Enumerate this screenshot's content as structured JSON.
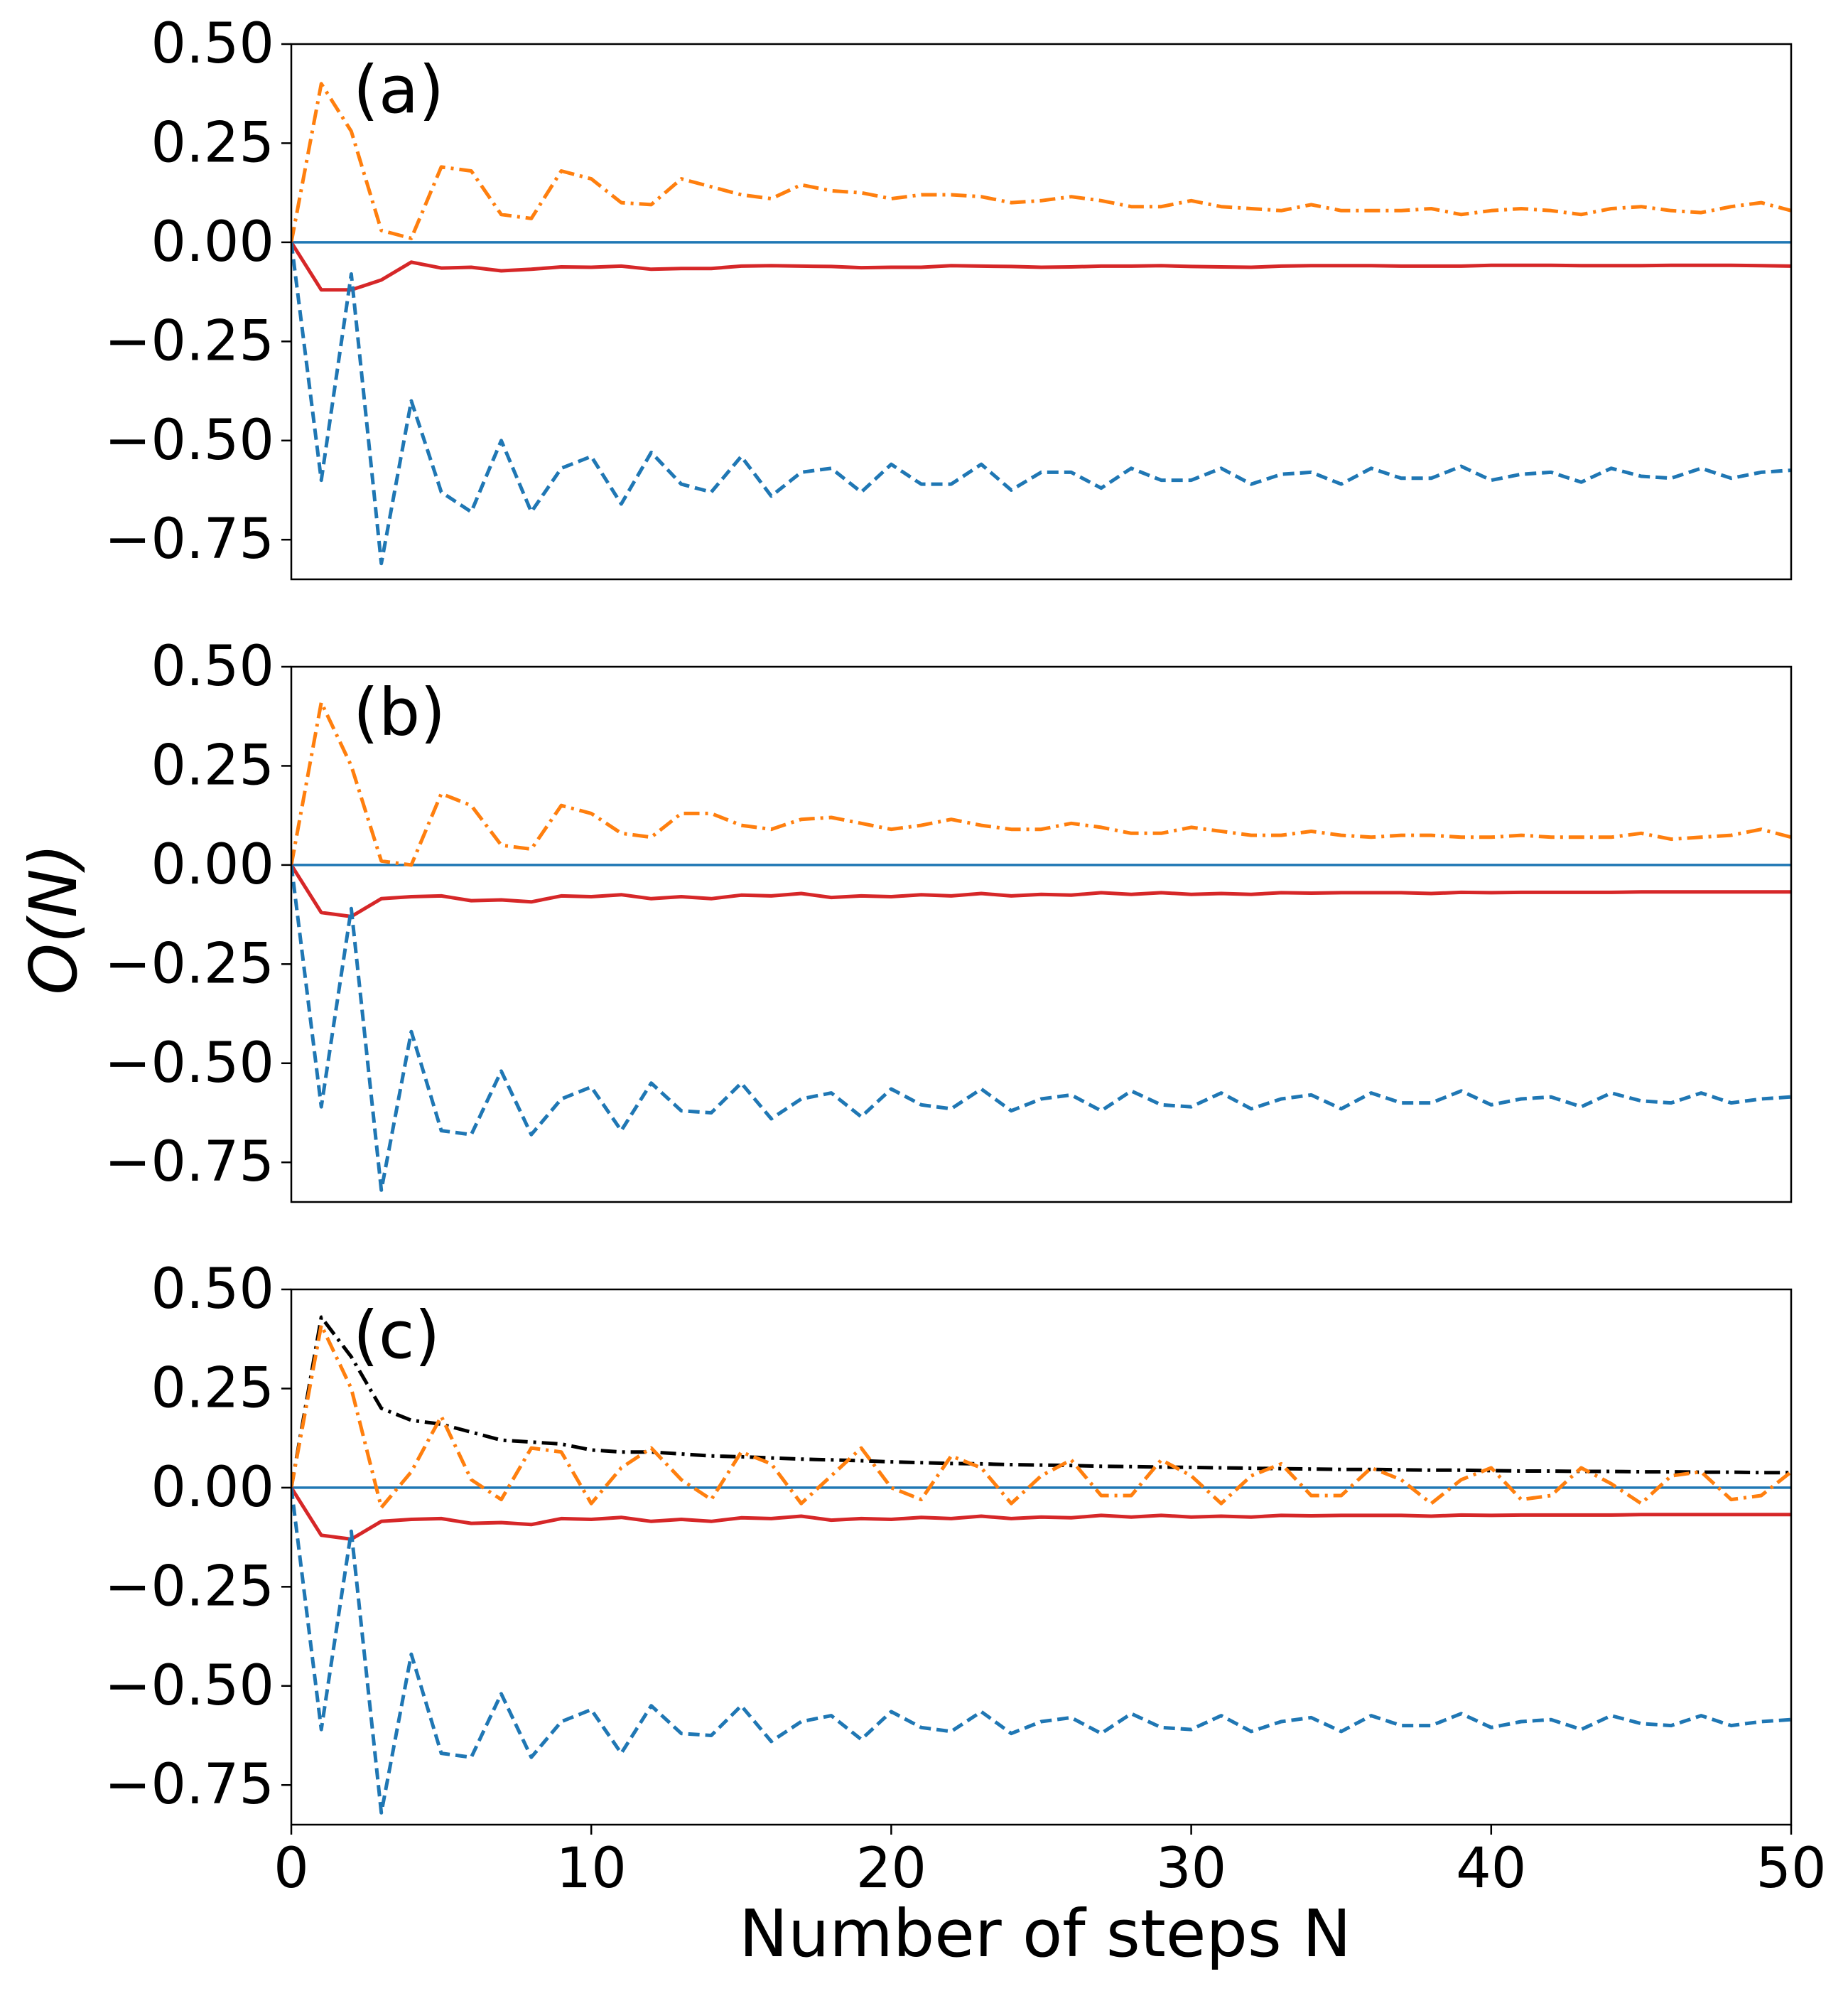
{
  "chart_data": {
    "type": "line",
    "ylabel_prefix": "O(",
    "ylabel_var": "N",
    "ylabel_suffix": ")",
    "xlabel": "Number of steps N",
    "xlim": [
      0,
      50
    ],
    "ylim": [
      -0.85,
      0.5
    ],
    "xticks": [
      0,
      10,
      20,
      30,
      40,
      50
    ],
    "xtick_labels": [
      "0",
      "10",
      "20",
      "30",
      "40",
      "50"
    ],
    "yticks": [
      0.5,
      0.25,
      0.0,
      -0.25,
      -0.5,
      -0.75
    ],
    "ytick_labels": [
      "0.50",
      "0.25",
      "0.00",
      "−0.25",
      "−0.50",
      "−0.75"
    ],
    "colors": {
      "blue": "#1f77b4",
      "orange": "#ff7f0e",
      "red": "#d62728",
      "black": "#000000"
    },
    "panels": [
      {
        "label": "(a)",
        "series": [
          {
            "name": "zero line",
            "style": "solid",
            "color": "#1f77b4",
            "x": [
              0,
              50
            ],
            "y": [
              0.0,
              0.0
            ]
          },
          {
            "name": "dash-dot orange",
            "style": "dashdot",
            "color": "#ff7f0e",
            "y": [
              0.0,
              0.4,
              0.28,
              0.03,
              0.01,
              0.19,
              0.18,
              0.07,
              0.06,
              0.18,
              0.16,
              0.1,
              0.095,
              0.16,
              0.14,
              0.12,
              0.11,
              0.145,
              0.13,
              0.125,
              0.11,
              0.12,
              0.12,
              0.115,
              0.1,
              0.105,
              0.115,
              0.105,
              0.09,
              0.09,
              0.105,
              0.09,
              0.085,
              0.08,
              0.095,
              0.08,
              0.08,
              0.08,
              0.085,
              0.07,
              0.08,
              0.085,
              0.08,
              0.07,
              0.085,
              0.09,
              0.08,
              0.075,
              0.09,
              0.1,
              0.08
            ]
          },
          {
            "name": "solid red",
            "style": "solid",
            "color": "#d62728",
            "y": [
              0.0,
              -0.12,
              -0.12,
              -0.095,
              -0.05,
              -0.065,
              -0.063,
              -0.072,
              -0.068,
              -0.062,
              -0.063,
              -0.06,
              -0.068,
              -0.066,
              -0.066,
              -0.06,
              -0.059,
              -0.06,
              -0.061,
              -0.064,
              -0.063,
              -0.063,
              -0.059,
              -0.06,
              -0.061,
              -0.063,
              -0.062,
              -0.06,
              -0.06,
              -0.059,
              -0.061,
              -0.062,
              -0.063,
              -0.06,
              -0.059,
              -0.059,
              -0.059,
              -0.06,
              -0.06,
              -0.06,
              -0.058,
              -0.058,
              -0.058,
              -0.059,
              -0.059,
              -0.059,
              -0.058,
              -0.058,
              -0.058,
              -0.059,
              -0.06
            ]
          },
          {
            "name": "dashed blue",
            "style": "dashed",
            "color": "#1f77b4",
            "y": [
              0.0,
              -0.6,
              -0.08,
              -0.81,
              -0.4,
              -0.63,
              -0.68,
              -0.5,
              -0.68,
              -0.57,
              -0.54,
              -0.66,
              -0.53,
              -0.61,
              -0.63,
              -0.54,
              -0.64,
              -0.58,
              -0.57,
              -0.63,
              -0.56,
              -0.61,
              -0.61,
              -0.56,
              -0.625,
              -0.58,
              -0.58,
              -0.62,
              -0.57,
              -0.6,
              -0.6,
              -0.57,
              -0.61,
              -0.585,
              -0.58,
              -0.61,
              -0.57,
              -0.595,
              -0.595,
              -0.565,
              -0.6,
              -0.585,
              -0.58,
              -0.605,
              -0.57,
              -0.59,
              -0.595,
              -0.57,
              -0.595,
              -0.58,
              -0.575
            ]
          }
        ]
      },
      {
        "label": "(b)",
        "series": [
          {
            "name": "zero line",
            "style": "solid",
            "color": "#1f77b4",
            "x": [
              0,
              50
            ],
            "y": [
              0.0,
              0.0
            ]
          },
          {
            "name": "dash-dot orange",
            "style": "dashdot",
            "color": "#ff7f0e",
            "y": [
              0.0,
              0.41,
              0.25,
              0.01,
              0.0,
              0.18,
              0.15,
              0.05,
              0.04,
              0.15,
              0.13,
              0.08,
              0.07,
              0.13,
              0.13,
              0.1,
              0.09,
              0.115,
              0.12,
              0.105,
              0.09,
              0.1,
              0.115,
              0.1,
              0.09,
              0.09,
              0.105,
              0.095,
              0.08,
              0.08,
              0.095,
              0.085,
              0.075,
              0.075,
              0.085,
              0.075,
              0.07,
              0.075,
              0.075,
              0.07,
              0.07,
              0.075,
              0.07,
              0.07,
              0.07,
              0.08,
              0.065,
              0.07,
              0.075,
              0.09,
              0.07
            ]
          },
          {
            "name": "solid red",
            "style": "solid",
            "color": "#d62728",
            "y": [
              0.0,
              -0.12,
              -0.13,
              -0.085,
              -0.08,
              -0.078,
              -0.09,
              -0.088,
              -0.093,
              -0.078,
              -0.08,
              -0.075,
              -0.085,
              -0.08,
              -0.085,
              -0.076,
              -0.078,
              -0.072,
              -0.082,
              -0.078,
              -0.08,
              -0.075,
              -0.078,
              -0.072,
              -0.078,
              -0.074,
              -0.076,
              -0.07,
              -0.074,
              -0.07,
              -0.074,
              -0.072,
              -0.074,
              -0.07,
              -0.071,
              -0.07,
              -0.07,
              -0.07,
              -0.072,
              -0.069,
              -0.07,
              -0.069,
              -0.069,
              -0.069,
              -0.069,
              -0.068,
              -0.068,
              -0.068,
              -0.068,
              -0.068,
              -0.068
            ]
          },
          {
            "name": "dashed blue",
            "style": "dashed",
            "color": "#1f77b4",
            "y": [
              0.0,
              -0.61,
              -0.11,
              -0.82,
              -0.42,
              -0.67,
              -0.68,
              -0.52,
              -0.68,
              -0.59,
              -0.56,
              -0.67,
              -0.55,
              -0.62,
              -0.625,
              -0.55,
              -0.64,
              -0.59,
              -0.575,
              -0.635,
              -0.565,
              -0.605,
              -0.615,
              -0.565,
              -0.62,
              -0.59,
              -0.58,
              -0.62,
              -0.57,
              -0.605,
              -0.61,
              -0.575,
              -0.615,
              -0.59,
              -0.58,
              -0.615,
              -0.575,
              -0.6,
              -0.6,
              -0.57,
              -0.605,
              -0.59,
              -0.585,
              -0.61,
              -0.575,
              -0.595,
              -0.6,
              -0.575,
              -0.6,
              -0.59,
              -0.585
            ]
          }
        ]
      },
      {
        "label": "(c)",
        "series": [
          {
            "name": "zero line",
            "style": "solid",
            "color": "#1f77b4",
            "x": [
              0,
              50
            ],
            "y": [
              0.0,
              0.0
            ]
          },
          {
            "name": "dash-dot black",
            "style": "dashdot",
            "color": "#000000",
            "y": [
              0.0,
              0.43,
              0.33,
              0.2,
              0.17,
              0.16,
              0.14,
              0.12,
              0.115,
              0.11,
              0.095,
              0.09,
              0.09,
              0.085,
              0.08,
              0.078,
              0.075,
              0.072,
              0.07,
              0.068,
              0.065,
              0.063,
              0.061,
              0.06,
              0.058,
              0.057,
              0.056,
              0.054,
              0.053,
              0.052,
              0.051,
              0.05,
              0.049,
              0.048,
              0.047,
              0.046,
              0.046,
              0.045,
              0.044,
              0.044,
              0.043,
              0.042,
              0.042,
              0.041,
              0.041,
              0.04,
              0.04,
              0.039,
              0.039,
              0.038,
              0.038
            ]
          },
          {
            "name": "dash-dot orange",
            "style": "dashdot",
            "color": "#ff7f0e",
            "y": [
              0.0,
              0.41,
              0.25,
              -0.05,
              0.04,
              0.18,
              0.02,
              -0.03,
              0.1,
              0.09,
              -0.04,
              0.05,
              0.1,
              0.02,
              -0.03,
              0.09,
              0.06,
              -0.04,
              0.03,
              0.1,
              0.0,
              -0.03,
              0.08,
              0.05,
              -0.04,
              0.03,
              0.07,
              -0.02,
              -0.02,
              0.07,
              0.03,
              -0.04,
              0.03,
              0.06,
              -0.02,
              -0.02,
              0.05,
              0.02,
              -0.04,
              0.02,
              0.05,
              -0.03,
              -0.02,
              0.05,
              0.01,
              -0.04,
              0.03,
              0.04,
              -0.03,
              -0.02,
              0.04
            ]
          },
          {
            "name": "solid red",
            "style": "solid",
            "color": "#d62728",
            "y": [
              0.0,
              -0.12,
              -0.13,
              -0.085,
              -0.08,
              -0.078,
              -0.09,
              -0.088,
              -0.093,
              -0.078,
              -0.08,
              -0.075,
              -0.085,
              -0.08,
              -0.085,
              -0.076,
              -0.078,
              -0.072,
              -0.082,
              -0.078,
              -0.08,
              -0.075,
              -0.078,
              -0.072,
              -0.078,
              -0.074,
              -0.076,
              -0.07,
              -0.074,
              -0.07,
              -0.074,
              -0.072,
              -0.074,
              -0.07,
              -0.071,
              -0.07,
              -0.07,
              -0.07,
              -0.072,
              -0.069,
              -0.07,
              -0.069,
              -0.069,
              -0.069,
              -0.069,
              -0.068,
              -0.068,
              -0.068,
              -0.068,
              -0.068,
              -0.068
            ]
          },
          {
            "name": "dashed blue",
            "style": "dashed",
            "color": "#1f77b4",
            "y": [
              0.0,
              -0.61,
              -0.11,
              -0.82,
              -0.42,
              -0.67,
              -0.68,
              -0.52,
              -0.68,
              -0.59,
              -0.56,
              -0.67,
              -0.55,
              -0.62,
              -0.625,
              -0.55,
              -0.64,
              -0.59,
              -0.575,
              -0.635,
              -0.565,
              -0.605,
              -0.615,
              -0.565,
              -0.62,
              -0.59,
              -0.58,
              -0.62,
              -0.57,
              -0.605,
              -0.61,
              -0.575,
              -0.615,
              -0.59,
              -0.58,
              -0.615,
              -0.575,
              -0.6,
              -0.6,
              -0.57,
              -0.605,
              -0.59,
              -0.585,
              -0.61,
              -0.575,
              -0.595,
              -0.6,
              -0.575,
              -0.6,
              -0.59,
              -0.585
            ]
          }
        ]
      }
    ]
  }
}
